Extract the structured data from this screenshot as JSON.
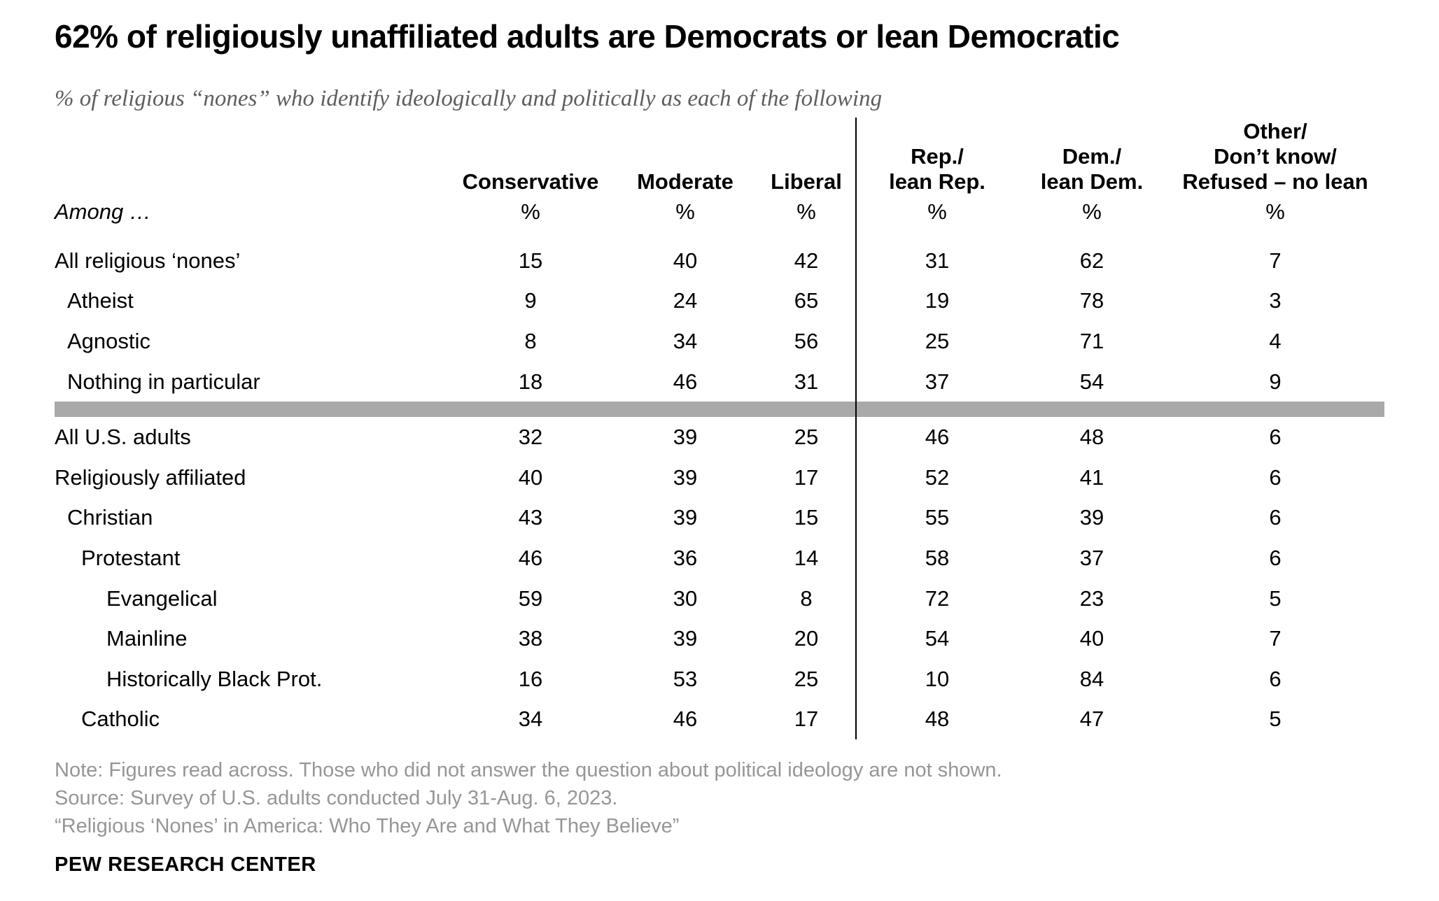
{
  "title": "62% of religiously unaffiliated adults are Democrats or lean Democratic",
  "subtitle": "% of religious “nones” who identify ideologically and politically as each of the following",
  "chart_data": {
    "type": "table",
    "among_label": "Among …",
    "unit": "%",
    "columns": [
      {
        "label": "Conservative",
        "group": "ideology"
      },
      {
        "label": "Moderate",
        "group": "ideology"
      },
      {
        "label": "Liberal",
        "group": "ideology"
      },
      {
        "label": "Rep./\nlean Rep.",
        "group": "party"
      },
      {
        "label": "Dem./\nlean Dem.",
        "group": "party"
      },
      {
        "label": "Other/\nDon’t know/\nRefused – no lean",
        "group": "party"
      }
    ],
    "rows": [
      {
        "label": "All religious ‘nones’",
        "indent": 0,
        "values": [
          15,
          40,
          42,
          31,
          62,
          7
        ]
      },
      {
        "label": "Atheist",
        "indent": 1,
        "values": [
          9,
          24,
          65,
          19,
          78,
          3
        ]
      },
      {
        "label": "Agnostic",
        "indent": 1,
        "values": [
          8,
          34,
          56,
          25,
          71,
          4
        ]
      },
      {
        "label": "Nothing in particular",
        "indent": 1,
        "values": [
          18,
          46,
          31,
          37,
          54,
          9
        ]
      },
      {
        "type": "divider"
      },
      {
        "label": "All U.S. adults",
        "indent": 0,
        "values": [
          32,
          39,
          25,
          46,
          48,
          6
        ]
      },
      {
        "label": "Religiously affiliated",
        "indent": 0,
        "values": [
          40,
          39,
          17,
          52,
          41,
          6
        ]
      },
      {
        "label": "Christian",
        "indent": 1,
        "values": [
          43,
          39,
          15,
          55,
          39,
          6
        ]
      },
      {
        "label": "Protestant",
        "indent": 2,
        "values": [
          46,
          36,
          14,
          58,
          37,
          6
        ]
      },
      {
        "label": "Evangelical",
        "indent": 3,
        "values": [
          59,
          30,
          8,
          72,
          23,
          5
        ]
      },
      {
        "label": "Mainline",
        "indent": 3,
        "values": [
          38,
          39,
          20,
          54,
          40,
          7
        ]
      },
      {
        "label": "Historically Black Prot.",
        "indent": 3,
        "values": [
          16,
          53,
          25,
          10,
          84,
          6
        ]
      },
      {
        "label": "Catholic",
        "indent": 2,
        "values": [
          34,
          46,
          17,
          48,
          47,
          5
        ]
      }
    ]
  },
  "notes": [
    "Note: Figures read across. Those who did not answer the question about political ideology are not shown.",
    "Source: Survey of U.S. adults conducted July 31-Aug. 6, 2023.",
    "“Religious ‘Nones’ in America: Who They Are and What They Believe”"
  ],
  "brand": "PEW RESEARCH CENTER",
  "colors": {
    "text": "#000000",
    "subtitle": "#5e5e5e",
    "notes": "#969696",
    "divider_bar": "#a9a9a9",
    "rule": "#000000"
  }
}
